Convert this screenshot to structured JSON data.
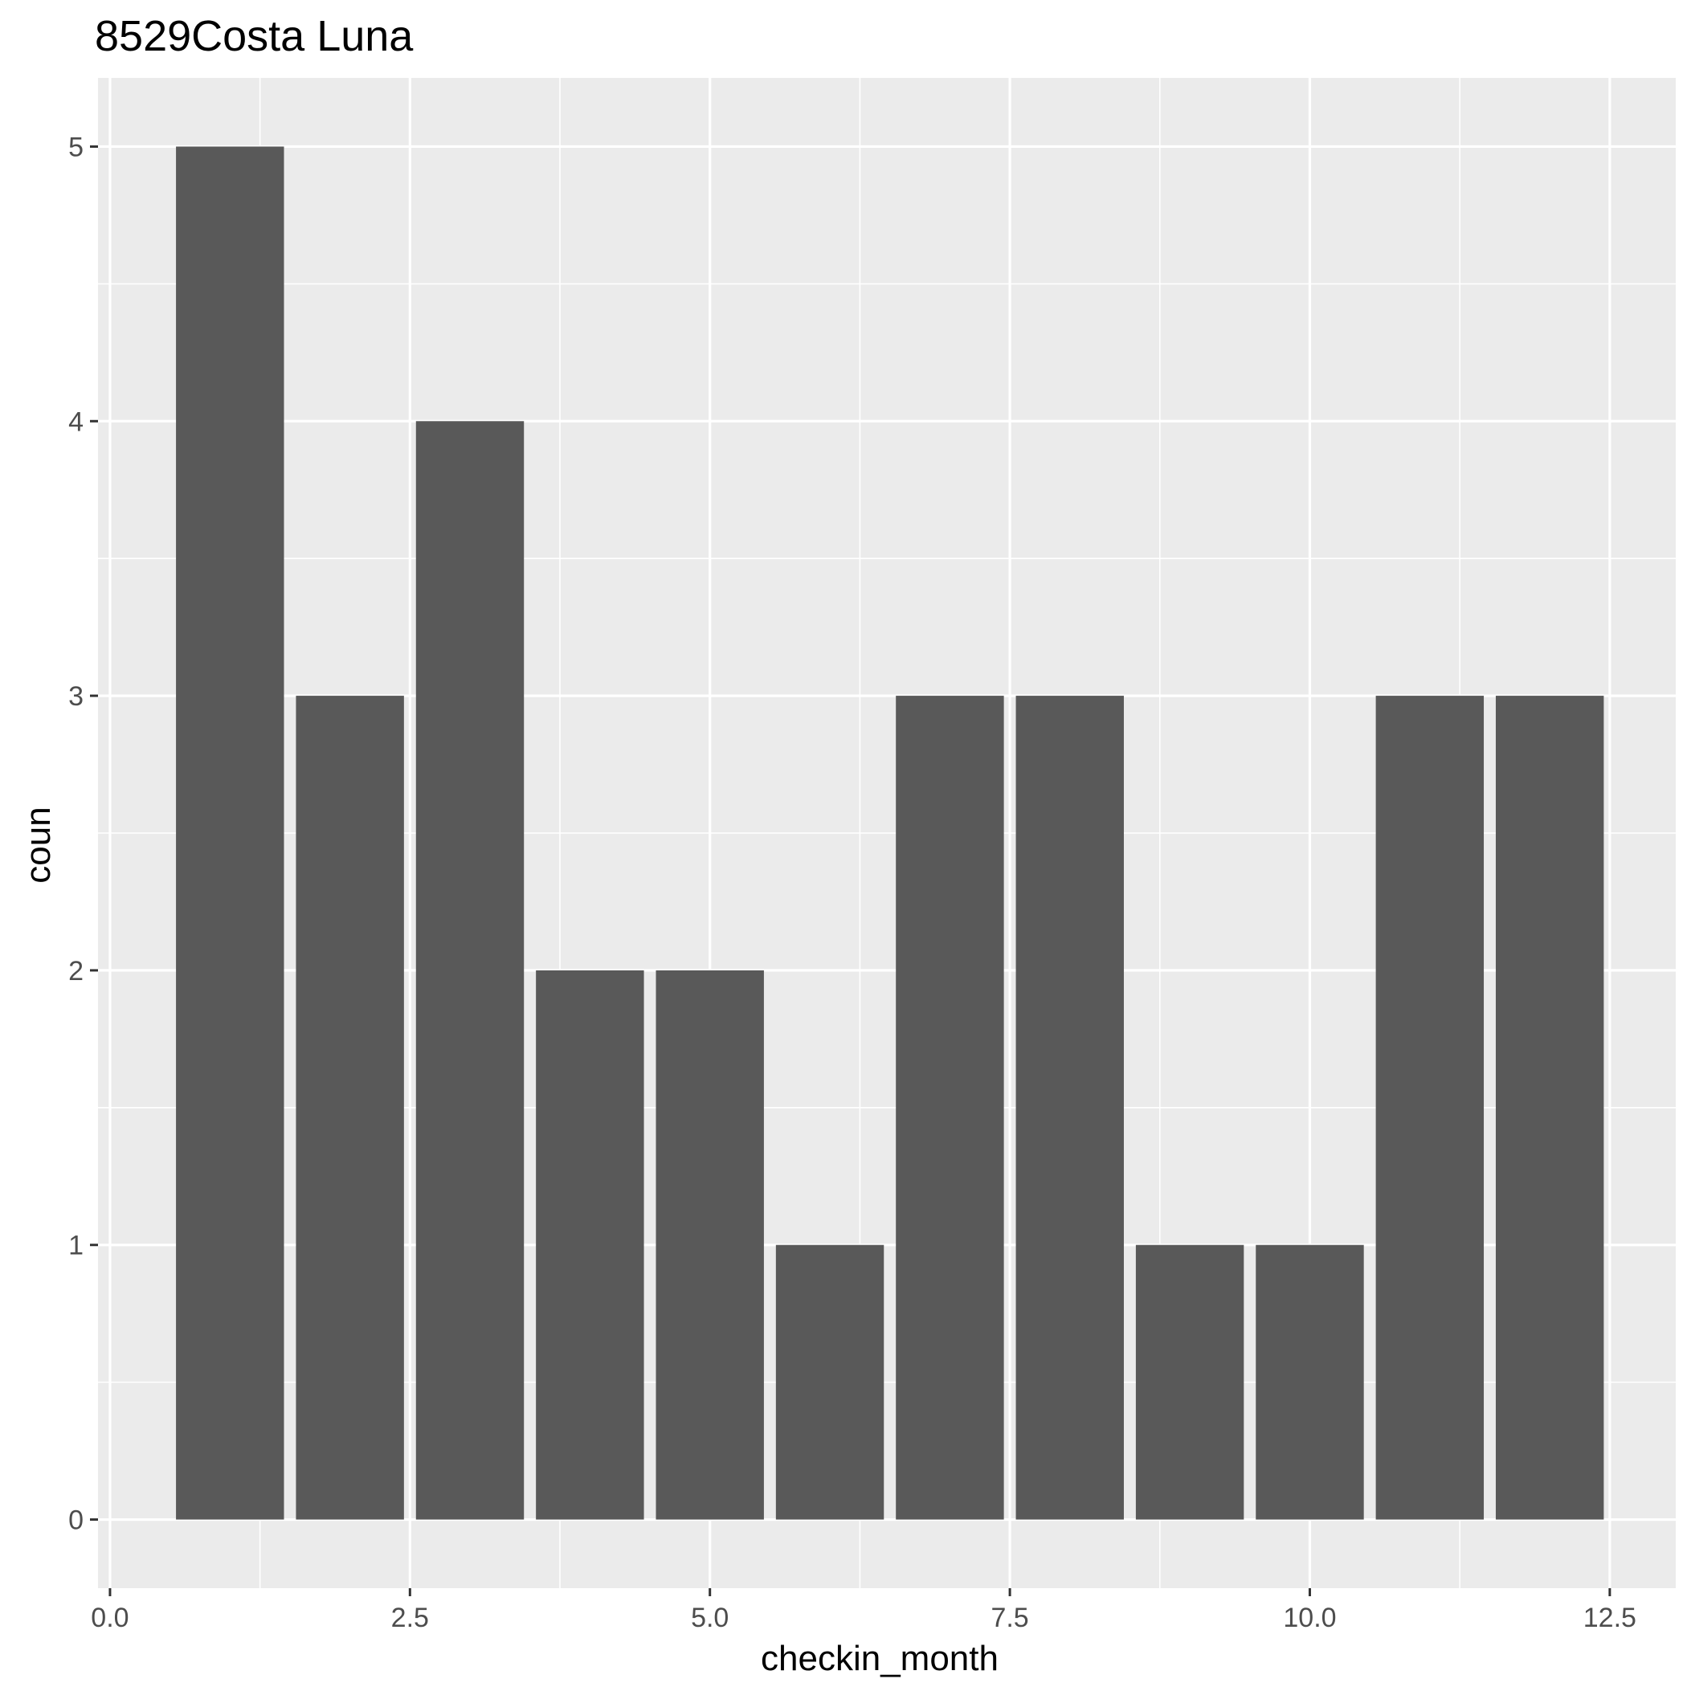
{
  "chart_data": {
    "type": "bar",
    "title": "8529Costa Luna",
    "xlabel": "checkin_month",
    "ylabel": "coun",
    "x": [
      1,
      2,
      3,
      4,
      5,
      6,
      7,
      8,
      9,
      10,
      11,
      12
    ],
    "values": [
      5,
      3,
      4,
      2,
      2,
      1,
      3,
      3,
      1,
      1,
      3,
      3
    ],
    "xlim": [
      -0.1,
      13.05
    ],
    "ylim": [
      -0.25,
      5.25
    ],
    "xticks": [
      0.0,
      2.5,
      5.0,
      7.5,
      10.0,
      12.5
    ],
    "xtick_labels": [
      "0.0",
      "2.5",
      "5.0",
      "7.5",
      "10.0",
      "12.5"
    ],
    "yticks": [
      0,
      1,
      2,
      3,
      4,
      5
    ],
    "ytick_labels": [
      "0",
      "1",
      "2",
      "3",
      "4",
      "5"
    ],
    "grid": true,
    "colors": {
      "panel": "#ebebeb",
      "bar": "#595959",
      "grid": "#ffffff",
      "tick": "#333333"
    }
  }
}
